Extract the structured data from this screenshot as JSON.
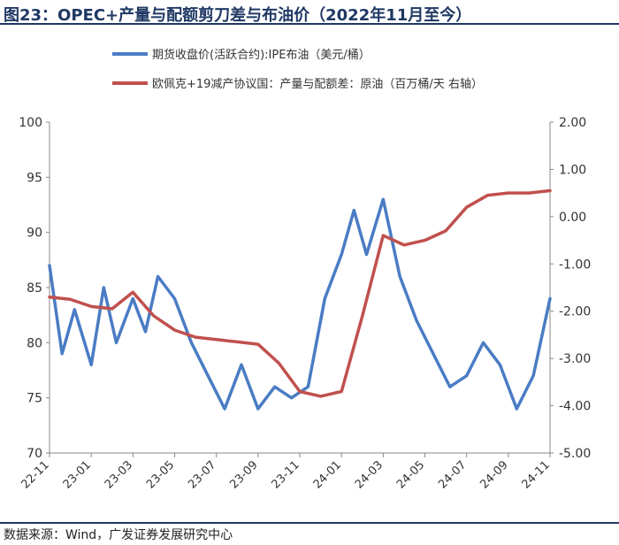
{
  "title": "图23：OPEC+产量与配额剪刀差与布油价（2022年11月至今）",
  "source": "数据来源：Wind，广发证券发展研究中心",
  "chart_data": {
    "type": "line",
    "x_tick_labels": [
      "22-11",
      "23-01",
      "23-03",
      "23-05",
      "23-07",
      "23-09",
      "23-11",
      "24-01",
      "24-03",
      "24-05",
      "24-07",
      "24-09",
      "24-11"
    ],
    "y_left": {
      "min": 70,
      "max": 100,
      "step": 5,
      "ticks": [
        "70",
        "75",
        "80",
        "85",
        "90",
        "95",
        "100"
      ]
    },
    "y_right": {
      "min": -5,
      "max": 2,
      "step": 1,
      "ticks": [
        "-5.00",
        "-4.00",
        "-3.00",
        "-2.00",
        "-1.00",
        "0.00",
        "1.00",
        "2.00"
      ]
    },
    "grid": false,
    "legend_position": "top",
    "series": [
      {
        "name": "期货收盘价(活跃合约):IPE布油（美元/桶）",
        "axis": "left",
        "color": "#4a7cc4",
        "x": [
          0,
          0.3,
          0.6,
          1,
          1.3,
          1.6,
          2,
          2.3,
          2.6,
          3,
          3.4,
          3.8,
          4.2,
          4.6,
          5,
          5.4,
          5.8,
          6.2,
          6.6,
          7,
          7.3,
          7.6,
          8,
          8.4,
          8.8,
          9.2,
          9.6,
          10,
          10.4,
          10.8,
          11.2,
          11.6,
          12
        ],
        "values": [
          87,
          79,
          83,
          78,
          85,
          80,
          84,
          81,
          86,
          84,
          80,
          77,
          74,
          78,
          74,
          76,
          75,
          76,
          84,
          88,
          92,
          88,
          93,
          86,
          82,
          79,
          76,
          77,
          80,
          78,
          74,
          77,
          84
        ]
      },
      {
        "name": "欧佩克+19减产协议国：产量与配额差：原油（百万桶/天 右轴）",
        "axis": "right",
        "color": "#c0504d",
        "x": [
          0,
          0.5,
          1,
          1.5,
          2,
          2.5,
          3,
          3.5,
          4,
          4.5,
          5,
          5.5,
          6,
          6.5,
          7,
          7.5,
          8,
          8.5,
          9,
          9.5,
          10,
          10.5,
          11,
          11.5,
          12
        ],
        "values": [
          -1.7,
          -1.75,
          -1.9,
          -1.95,
          -1.6,
          -2.1,
          -2.4,
          -2.55,
          -2.6,
          -2.65,
          -2.7,
          -3.1,
          -3.7,
          -3.8,
          -3.7,
          -2.1,
          -0.4,
          -0.6,
          -0.5,
          -0.3,
          0.2,
          0.45,
          0.5,
          0.5,
          0.55
        ]
      }
    ]
  }
}
